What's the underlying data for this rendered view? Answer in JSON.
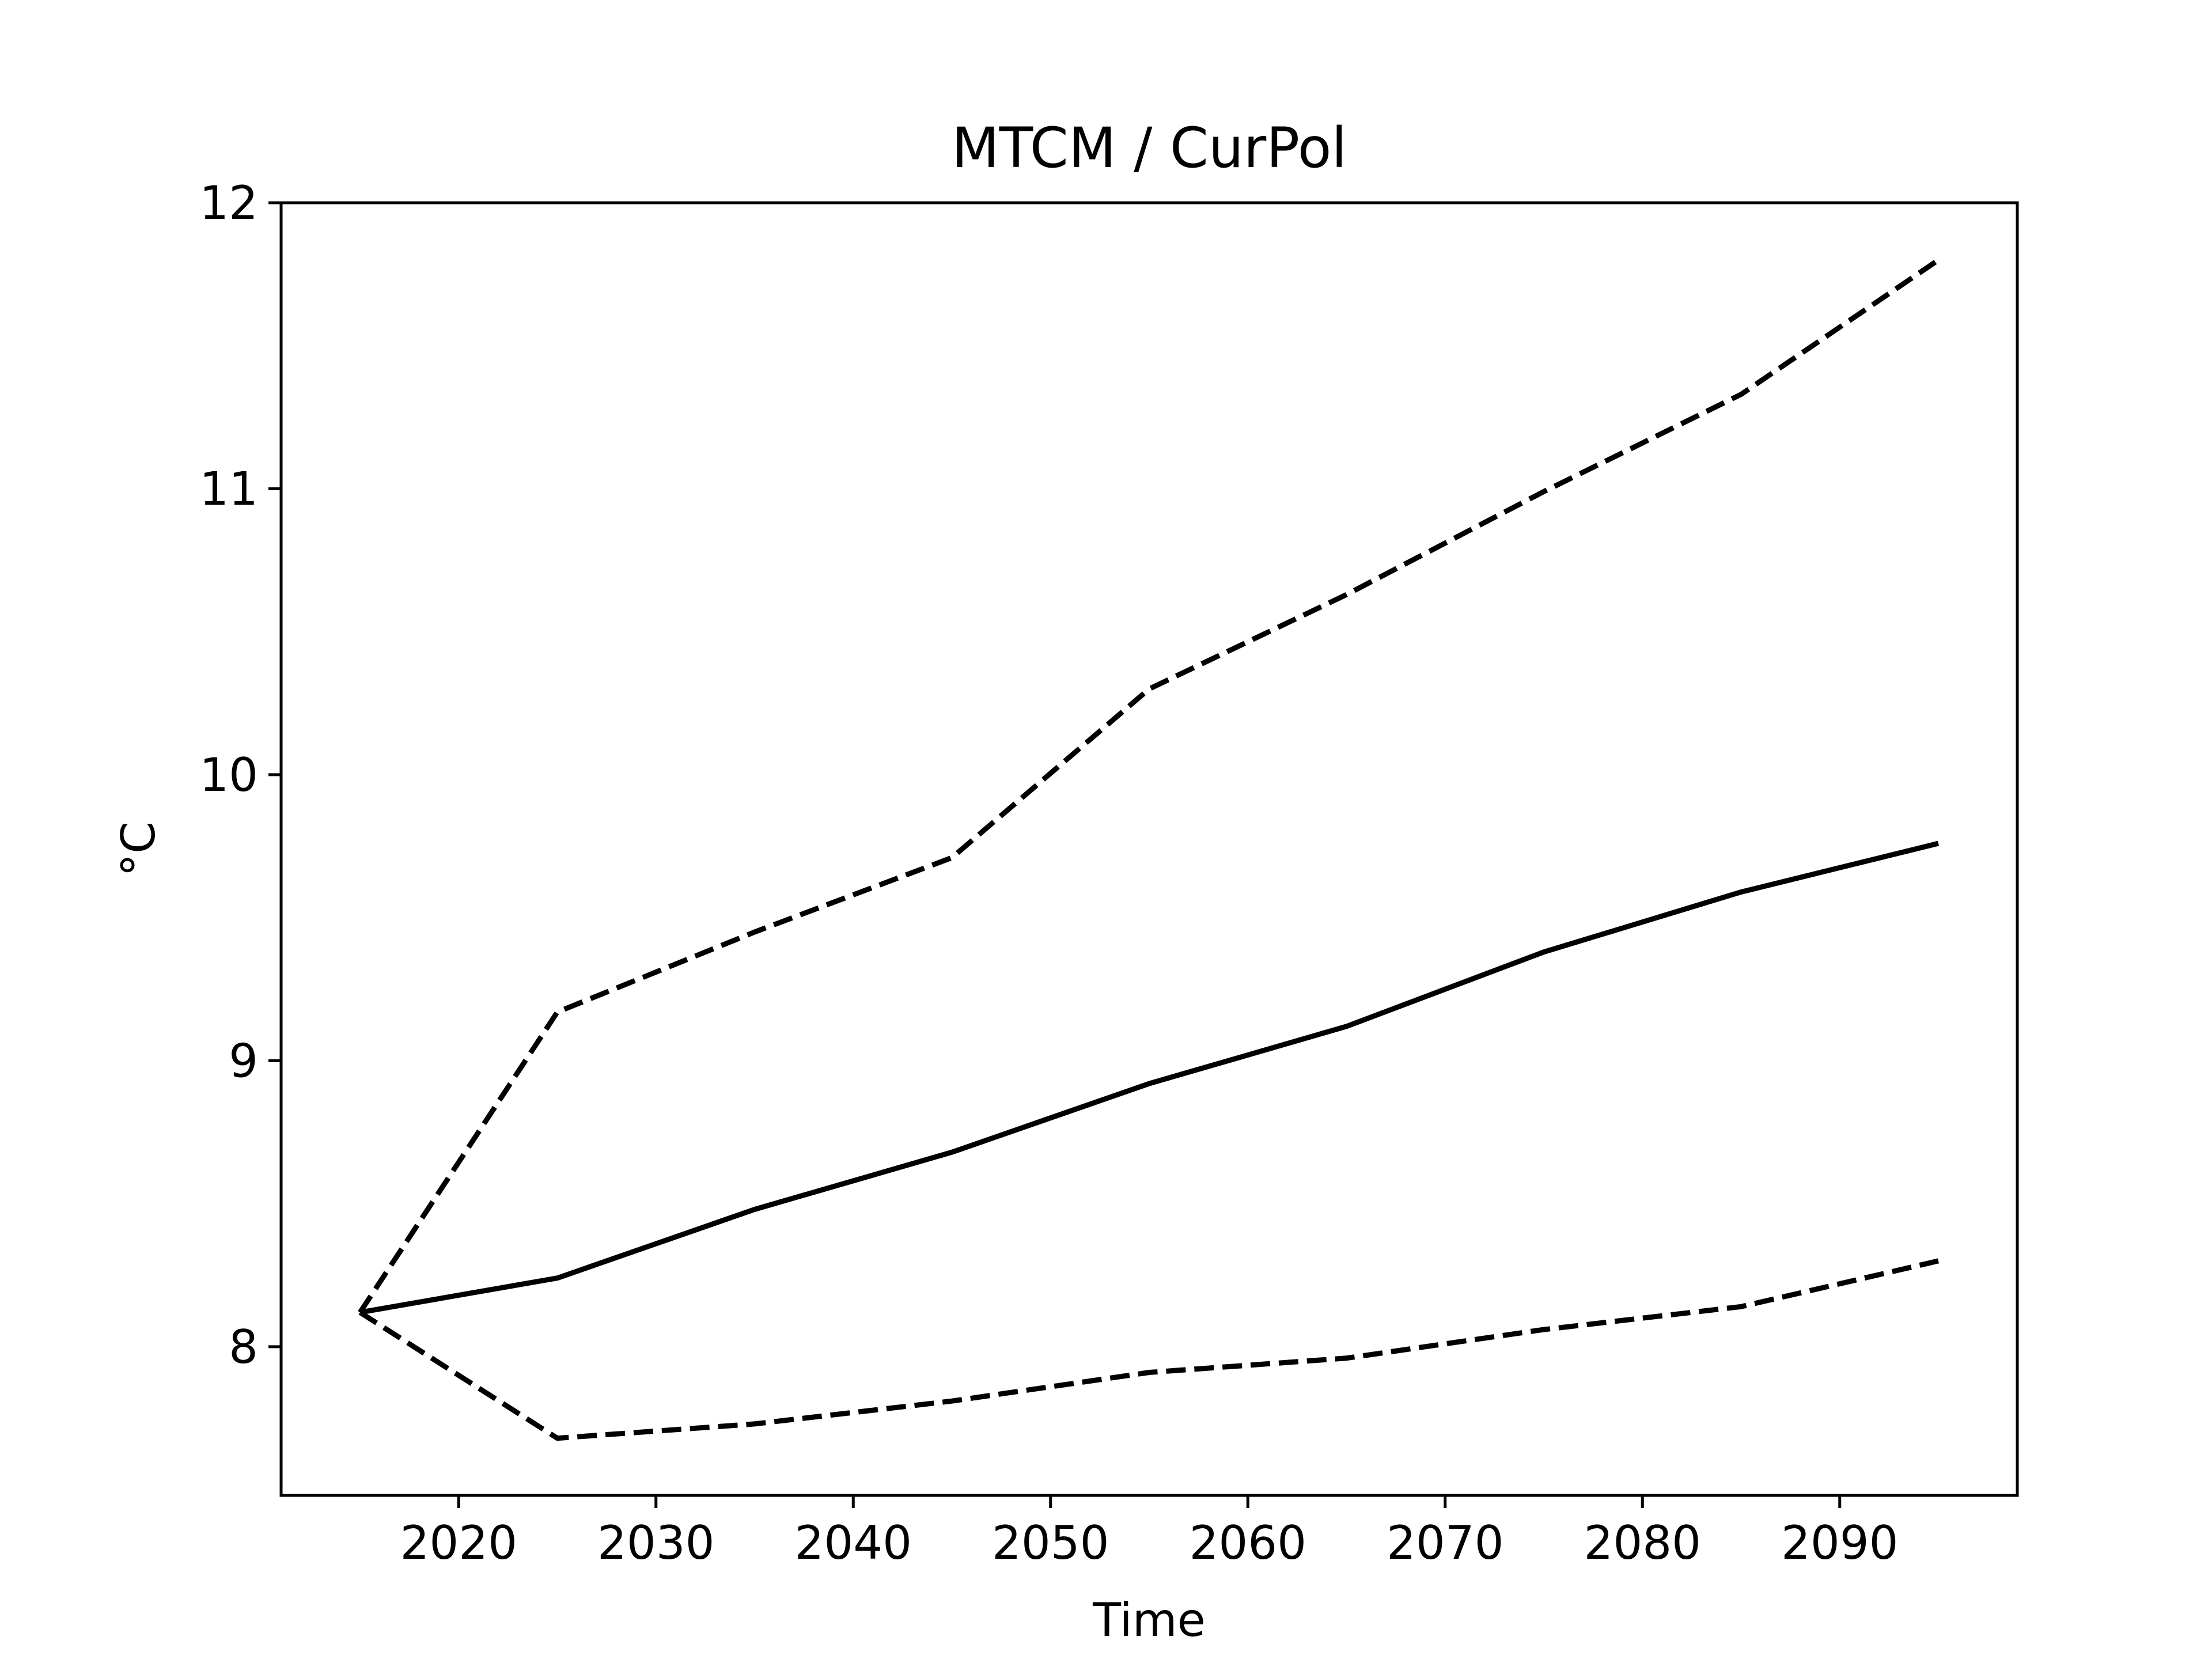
{
  "chart_data": {
    "type": "line",
    "title": "MTCM / CurPol",
    "xlabel": "Time",
    "ylabel": "°C",
    "xlim": [
      2011,
      2099
    ],
    "ylim": [
      7.48,
      12.0
    ],
    "xticks": [
      2020,
      2030,
      2040,
      2050,
      2060,
      2070,
      2080,
      2090
    ],
    "yticks": [
      8,
      9,
      10,
      11,
      12
    ],
    "grid": false,
    "x": [
      2015,
      2025,
      2035,
      2045,
      2055,
      2065,
      2075,
      2085,
      2095
    ],
    "series": [
      {
        "style": "solid",
        "color": "#000000",
        "values": [
          8.12,
          8.24,
          8.48,
          8.68,
          8.92,
          9.12,
          9.38,
          9.59,
          9.76
        ]
      },
      {
        "style": "dashed",
        "color": "#000000",
        "values": [
          8.12,
          9.17,
          9.45,
          9.71,
          10.3,
          10.63,
          10.99,
          11.33,
          11.8
        ]
      },
      {
        "style": "dashed",
        "color": "#000000",
        "values": [
          8.12,
          7.68,
          7.73,
          7.81,
          7.91,
          7.96,
          8.06,
          8.14,
          8.3
        ]
      }
    ]
  }
}
